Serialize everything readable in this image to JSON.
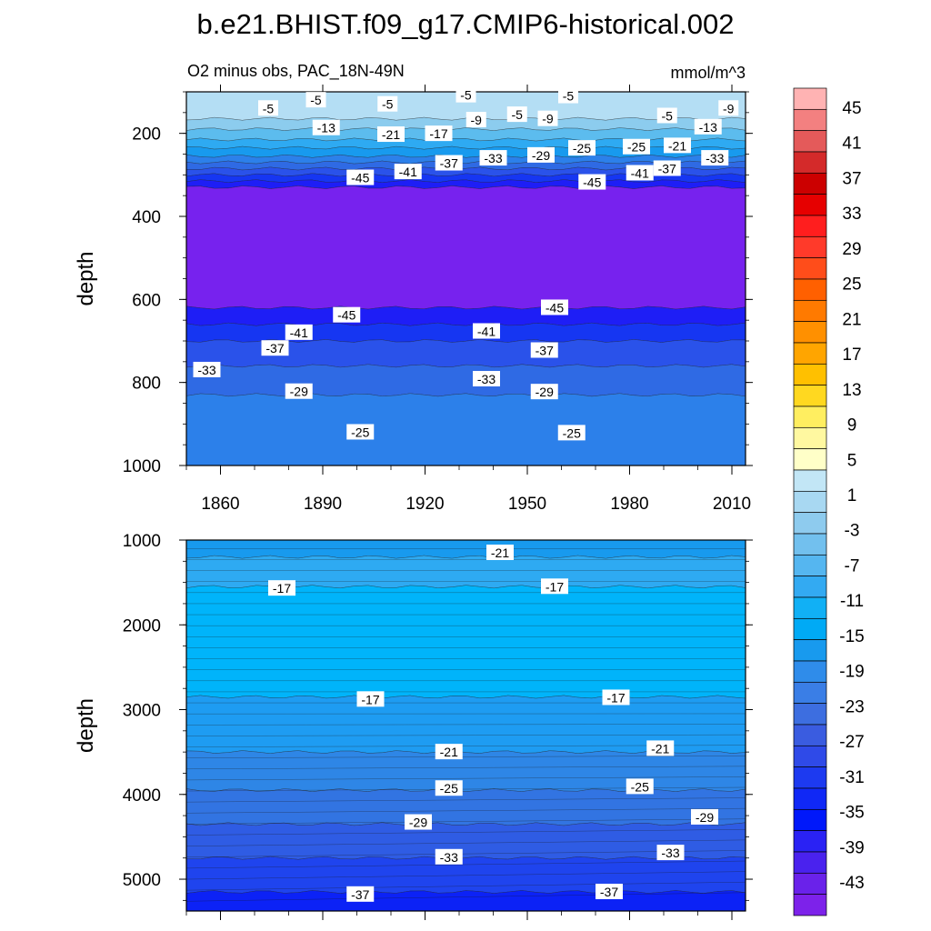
{
  "title": "b.e21.BHIST.f09_g17.CMIP6-historical.002",
  "subtitle_left": "O2 minus obs, PAC_18N-49N",
  "subtitle_right": "mmol/m^3",
  "chart_data": [
    {
      "type": "contour",
      "panel": "upper",
      "ylabel": "depth",
      "xlim": [
        1850,
        2014
      ],
      "ylim": [
        1000,
        100
      ],
      "x_ticks": [
        1860,
        1890,
        1920,
        1950,
        1980,
        2010
      ],
      "y_ticks": [
        200,
        400,
        600,
        800,
        1000
      ],
      "bands": [
        {
          "from": 100,
          "to": 165,
          "level": -5
        },
        {
          "from": 165,
          "to": 190,
          "level": -9
        },
        {
          "from": 190,
          "to": 215,
          "level": -13
        },
        {
          "from": 215,
          "to": 235,
          "level": -17
        },
        {
          "from": 235,
          "to": 255,
          "level": -21
        },
        {
          "from": 255,
          "to": 270,
          "level": -25
        },
        {
          "from": 270,
          "to": 285,
          "level": -29
        },
        {
          "from": 285,
          "to": 300,
          "level": -33
        },
        {
          "from": 300,
          "to": 315,
          "level": -37
        },
        {
          "from": 315,
          "to": 330,
          "level": -41
        },
        {
          "from": 330,
          "to": 620,
          "level": -45
        },
        {
          "from": 620,
          "to": 660,
          "level": -41
        },
        {
          "from": 660,
          "to": 700,
          "level": -37
        },
        {
          "from": 700,
          "to": 760,
          "level": -33
        },
        {
          "from": 760,
          "to": 830,
          "level": -29
        },
        {
          "from": 830,
          "to": 1000,
          "level": -25
        }
      ],
      "contour_labels": [
        {
          "x": 1874,
          "y": 140,
          "text": "-5"
        },
        {
          "x": 1888,
          "y": 120,
          "text": "-5"
        },
        {
          "x": 1909,
          "y": 130,
          "text": "-5"
        },
        {
          "x": 1932,
          "y": 108,
          "text": "-5"
        },
        {
          "x": 1947,
          "y": 155,
          "text": "-5"
        },
        {
          "x": 1962,
          "y": 110,
          "text": "-5"
        },
        {
          "x": 1991,
          "y": 158,
          "text": "-5"
        },
        {
          "x": 2009,
          "y": 140,
          "text": "-9"
        },
        {
          "x": 1935,
          "y": 168,
          "text": "-9"
        },
        {
          "x": 1956,
          "y": 165,
          "text": "-9"
        },
        {
          "x": 1891,
          "y": 187,
          "text": "-13"
        },
        {
          "x": 2003,
          "y": 185,
          "text": "-13"
        },
        {
          "x": 1910,
          "y": 203,
          "text": "-21"
        },
        {
          "x": 1924,
          "y": 201,
          "text": "-17"
        },
        {
          "x": 1966,
          "y": 236,
          "text": "-25"
        },
        {
          "x": 1982,
          "y": 233,
          "text": "-25"
        },
        {
          "x": 1994,
          "y": 230,
          "text": "-21"
        },
        {
          "x": 1954,
          "y": 253,
          "text": "-29"
        },
        {
          "x": 1940,
          "y": 260,
          "text": "-33"
        },
        {
          "x": 2005,
          "y": 260,
          "text": "-33"
        },
        {
          "x": 1927,
          "y": 272,
          "text": "-37"
        },
        {
          "x": 1991,
          "y": 285,
          "text": "-37"
        },
        {
          "x": 1915,
          "y": 293,
          "text": "-41"
        },
        {
          "x": 1983,
          "y": 296,
          "text": "-41"
        },
        {
          "x": 1901,
          "y": 307,
          "text": "-45"
        },
        {
          "x": 1969,
          "y": 318,
          "text": "-45"
        },
        {
          "x": 1897,
          "y": 638,
          "text": "-45"
        },
        {
          "x": 1958,
          "y": 620,
          "text": "-45"
        },
        {
          "x": 1883,
          "y": 680,
          "text": "-41"
        },
        {
          "x": 1938,
          "y": 677,
          "text": "-41"
        },
        {
          "x": 1876,
          "y": 718,
          "text": "-37"
        },
        {
          "x": 1955,
          "y": 723,
          "text": "-37"
        },
        {
          "x": 1856,
          "y": 770,
          "text": "-33"
        },
        {
          "x": 1938,
          "y": 792,
          "text": "-33"
        },
        {
          "x": 1883,
          "y": 822,
          "text": "-29"
        },
        {
          "x": 1955,
          "y": 823,
          "text": "-29"
        },
        {
          "x": 1901,
          "y": 920,
          "text": "-25"
        },
        {
          "x": 1963,
          "y": 922,
          "text": "-25"
        }
      ]
    },
    {
      "type": "contour",
      "panel": "lower",
      "ylabel": "depth",
      "xlim": [
        1850,
        2014
      ],
      "ylim": [
        5375,
        1000
      ],
      "y_ticks": [
        1000,
        2000,
        3000,
        4000,
        5000
      ],
      "bands": [
        {
          "from": 1000,
          "to": 1200,
          "level": -21
        },
        {
          "from": 1200,
          "to": 1550,
          "level": -17
        },
        {
          "from": 1550,
          "to": 2850,
          "level": -15
        },
        {
          "from": 2850,
          "to": 3500,
          "level": -19
        },
        {
          "from": 3500,
          "to": 3950,
          "level": -23
        },
        {
          "from": 3950,
          "to": 4350,
          "level": -27
        },
        {
          "from": 4350,
          "to": 4750,
          "level": -31
        },
        {
          "from": 4750,
          "to": 5150,
          "level": -35
        },
        {
          "from": 5150,
          "to": 5375,
          "level": -39
        }
      ],
      "contour_labels": [
        {
          "x": 1942,
          "y": 1150,
          "text": "-21"
        },
        {
          "x": 1878,
          "y": 1570,
          "text": "-17"
        },
        {
          "x": 1958,
          "y": 1550,
          "text": "-17"
        },
        {
          "x": 1904,
          "y": 2880,
          "text": "-17"
        },
        {
          "x": 1976,
          "y": 2860,
          "text": "-17"
        },
        {
          "x": 1927,
          "y": 3500,
          "text": "-21"
        },
        {
          "x": 1989,
          "y": 3460,
          "text": "-21"
        },
        {
          "x": 1927,
          "y": 3930,
          "text": "-25"
        },
        {
          "x": 1983,
          "y": 3910,
          "text": "-25"
        },
        {
          "x": 1918,
          "y": 4330,
          "text": "-29"
        },
        {
          "x": 2002,
          "y": 4270,
          "text": "-29"
        },
        {
          "x": 1927,
          "y": 4740,
          "text": "-33"
        },
        {
          "x": 1992,
          "y": 4690,
          "text": "-33"
        },
        {
          "x": 1901,
          "y": 5180,
          "text": "-37"
        },
        {
          "x": 1974,
          "y": 5150,
          "text": "-37"
        }
      ]
    }
  ],
  "colorbar": {
    "colors": [
      "#ffb3b3",
      "#f38080",
      "#e45a5a",
      "#d42a2a",
      "#cc0000",
      "#e60000",
      "#ff1e1e",
      "#ff3a2a",
      "#ff4d1a",
      "#ff6000",
      "#ff7a00",
      "#ff9000",
      "#ffa500",
      "#ffc000",
      "#ffd820",
      "#ffee60",
      "#fff8a0",
      "#ffffc8",
      "#c2e6f6",
      "#a8d8f2",
      "#8ecbee",
      "#72c0ee",
      "#55b6f0",
      "#33aaf2",
      "#11b0f5",
      "#00aaf5",
      "#189aee",
      "#2f8cea",
      "#3a7ee6",
      "#3d6ee0",
      "#3a5ce0",
      "#2f4ae8",
      "#1d3af0",
      "#1028f6",
      "#0018fa",
      "#2a22f4",
      "#4a22ee",
      "#6a22ea",
      "#7d22ea"
    ],
    "labels": [
      "45",
      "41",
      "37",
      "33",
      "29",
      "25",
      "21",
      "17",
      "13",
      "9",
      "5",
      "1",
      "-3",
      "-7",
      "-11",
      "-15",
      "-19",
      "-23",
      "-27",
      "-31",
      "-35",
      "-39",
      "-43"
    ]
  }
}
